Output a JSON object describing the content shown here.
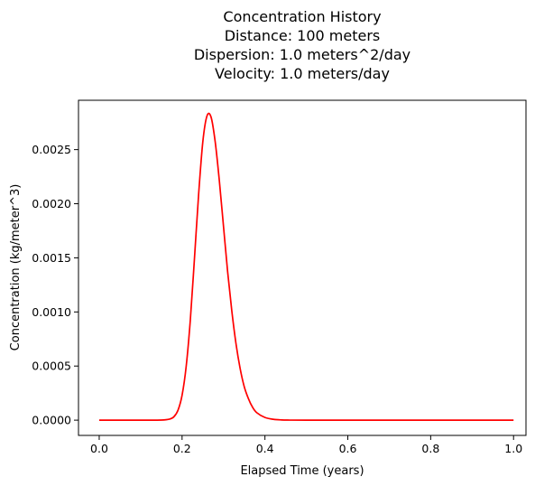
{
  "chart_data": {
    "type": "line",
    "title_lines": [
      "Concentration History",
      "Distance: 100 meters",
      "Dispersion: 1.0 meters^2/day",
      "Velocity: 1.0 meters/day"
    ],
    "xlabel": "Elapsed Time (years)",
    "ylabel": "Concentration  (kg/meter^3)",
    "xlim": [
      -0.05,
      1.03
    ],
    "ylim": [
      -0.000141,
      0.002956
    ],
    "xticks": [
      0.0,
      0.2,
      0.4,
      0.6,
      0.8,
      1.0
    ],
    "xtick_labels": [
      "0.0",
      "0.2",
      "0.4",
      "0.6",
      "0.8",
      "1.0"
    ],
    "yticks": [
      0.0,
      0.0005,
      0.001,
      0.0015,
      0.002,
      0.0025
    ],
    "ytick_labels": [
      "0.0000",
      "0.0005",
      "0.0010",
      "0.0015",
      "0.0020",
      "0.0025"
    ],
    "grid": false,
    "series": [
      {
        "color": "#ff0000",
        "x": [
          0.0,
          0.1,
          0.15,
          0.17,
          0.18,
          0.19,
          0.2,
          0.21,
          0.22,
          0.23,
          0.24,
          0.25,
          0.26,
          0.27,
          0.28,
          0.29,
          0.3,
          0.31,
          0.32,
          0.33,
          0.34,
          0.35,
          0.36,
          0.37,
          0.38,
          0.4,
          0.42,
          0.44,
          0.46,
          0.5,
          0.6,
          0.8,
          1.0
        ],
        "y": [
          0.0,
          0.0,
          1e-06,
          1e-05,
          3e-05,
          9e-05,
          0.00023,
          0.0005,
          0.00093,
          0.0015,
          0.00209,
          0.00257,
          0.00281,
          0.0028,
          0.00257,
          0.00221,
          0.00179,
          0.00137,
          0.00101,
          0.00071,
          0.00048,
          0.00031,
          0.0002,
          0.00012,
          7e-05,
          2.5e-05,
          8e-06,
          2e-06,
          6e-07,
          0.0,
          0.0,
          0.0,
          0.0
        ]
      }
    ]
  }
}
